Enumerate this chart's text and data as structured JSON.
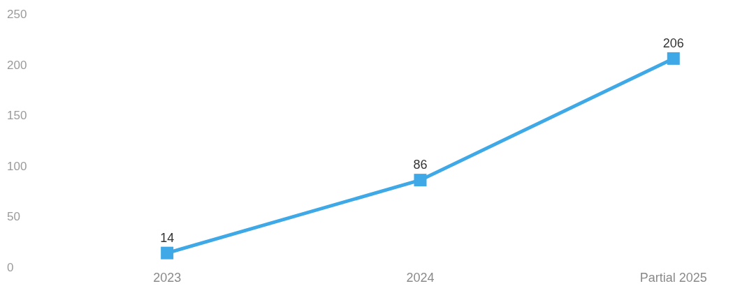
{
  "chart_data": {
    "type": "line",
    "categories": [
      "2023",
      "2024",
      "Partial 2025"
    ],
    "series": [
      {
        "color": "#3fa8e6",
        "values": [
          14,
          86,
          206
        ]
      }
    ],
    "ylim": [
      0,
      250
    ],
    "yticks": [
      0,
      50,
      100,
      150,
      200,
      250
    ],
    "marker": "square",
    "line_style": "solid",
    "data_labels": true
  }
}
